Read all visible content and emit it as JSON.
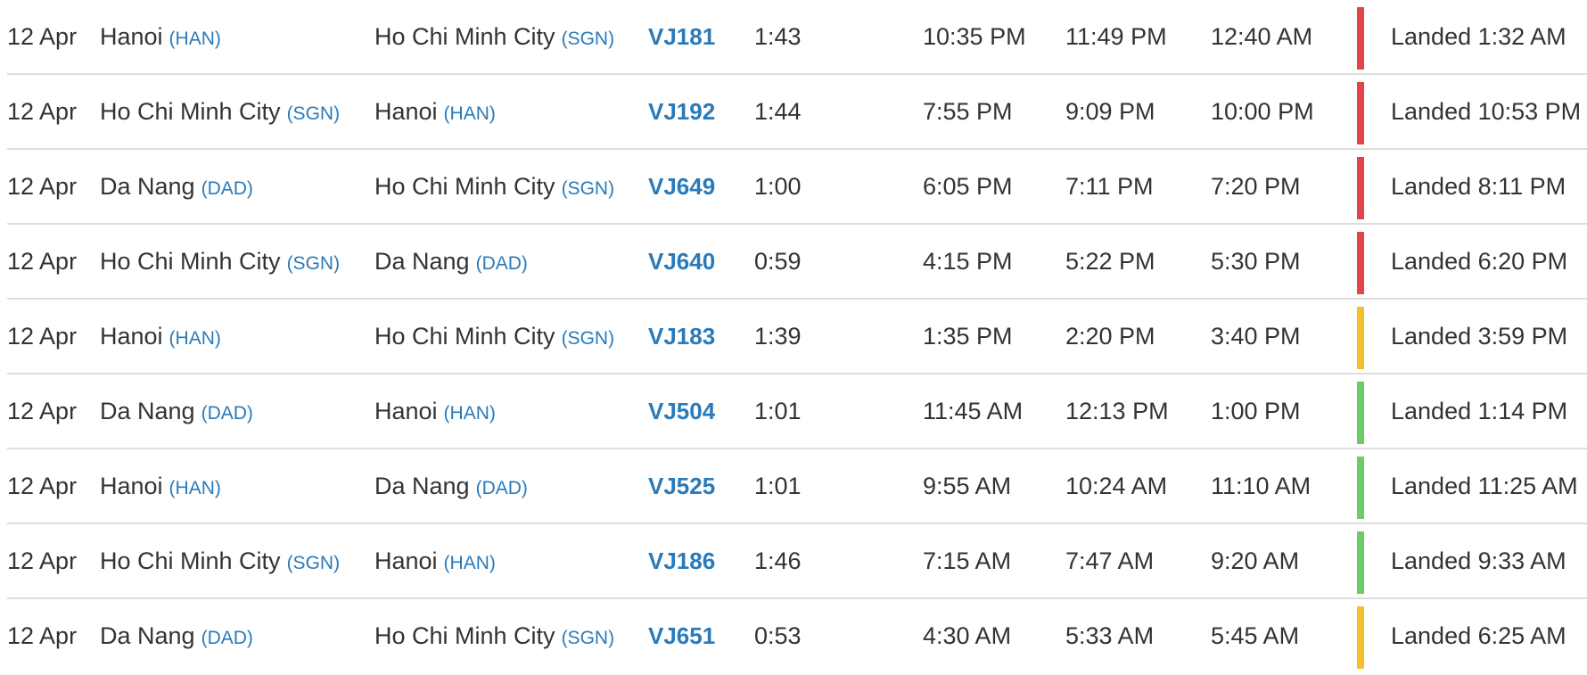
{
  "flights": [
    {
      "date": "12 Apr",
      "from_city": "Hanoi",
      "from_code": "(HAN)",
      "to_city": "Ho Chi Minh City",
      "to_code": "(SGN)",
      "flight": "VJ181",
      "duration": "1:43",
      "std": "10:35 PM",
      "atd": "11:49 PM",
      "sta": "12:40 AM",
      "status_color": "#e5434a",
      "status": "Landed 1:32 AM"
    },
    {
      "date": "12 Apr",
      "from_city": "Ho Chi Minh City",
      "from_code": "(SGN)",
      "to_city": "Hanoi",
      "to_code": "(HAN)",
      "flight": "VJ192",
      "duration": "1:44",
      "std": "7:55 PM",
      "atd": "9:09 PM",
      "sta": "10:00 PM",
      "status_color": "#e5434a",
      "status": "Landed 10:53 PM"
    },
    {
      "date": "12 Apr",
      "from_city": "Da Nang",
      "from_code": "(DAD)",
      "to_city": "Ho Chi Minh City",
      "to_code": "(SGN)",
      "flight": "VJ649",
      "duration": "1:00",
      "std": "6:05 PM",
      "atd": "7:11 PM",
      "sta": "7:20 PM",
      "status_color": "#e5434a",
      "status": "Landed 8:11 PM"
    },
    {
      "date": "12 Apr",
      "from_city": "Ho Chi Minh City",
      "from_code": "(SGN)",
      "to_city": "Da Nang",
      "to_code": "(DAD)",
      "flight": "VJ640",
      "duration": "0:59",
      "std": "4:15 PM",
      "atd": "5:22 PM",
      "sta": "5:30 PM",
      "status_color": "#e5434a",
      "status": "Landed 6:20 PM"
    },
    {
      "date": "12 Apr",
      "from_city": "Hanoi",
      "from_code": "(HAN)",
      "to_city": "Ho Chi Minh City",
      "to_code": "(SGN)",
      "flight": "VJ183",
      "duration": "1:39",
      "std": "1:35 PM",
      "atd": "2:20 PM",
      "sta": "3:40 PM",
      "status_color": "#f5c02c",
      "status": "Landed 3:59 PM"
    },
    {
      "date": "12 Apr",
      "from_city": "Da Nang",
      "from_code": "(DAD)",
      "to_city": "Hanoi",
      "to_code": "(HAN)",
      "flight": "VJ504",
      "duration": "1:01",
      "std": "11:45 AM",
      "atd": "12:13 PM",
      "sta": "1:00 PM",
      "status_color": "#6ccc67",
      "status": "Landed 1:14 PM"
    },
    {
      "date": "12 Apr",
      "from_city": "Hanoi",
      "from_code": "(HAN)",
      "to_city": "Da Nang",
      "to_code": "(DAD)",
      "flight": "VJ525",
      "duration": "1:01",
      "std": "9:55 AM",
      "atd": "10:24 AM",
      "sta": "11:10 AM",
      "status_color": "#6ccc67",
      "status": "Landed 11:25 AM"
    },
    {
      "date": "12 Apr",
      "from_city": "Ho Chi Minh City",
      "from_code": "(SGN)",
      "to_city": "Hanoi",
      "to_code": "(HAN)",
      "flight": "VJ186",
      "duration": "1:46",
      "std": "7:15 AM",
      "atd": "7:47 AM",
      "sta": "9:20 AM",
      "status_color": "#6ccc67",
      "status": "Landed 9:33 AM"
    },
    {
      "date": "12 Apr",
      "from_city": "Da Nang",
      "from_code": "(DAD)",
      "to_city": "Ho Chi Minh City",
      "to_code": "(SGN)",
      "flight": "VJ651",
      "duration": "0:53",
      "std": "4:30 AM",
      "atd": "5:33 AM",
      "sta": "5:45 AM",
      "status_color": "#f5c02c",
      "status": "Landed 6:25 AM"
    }
  ]
}
